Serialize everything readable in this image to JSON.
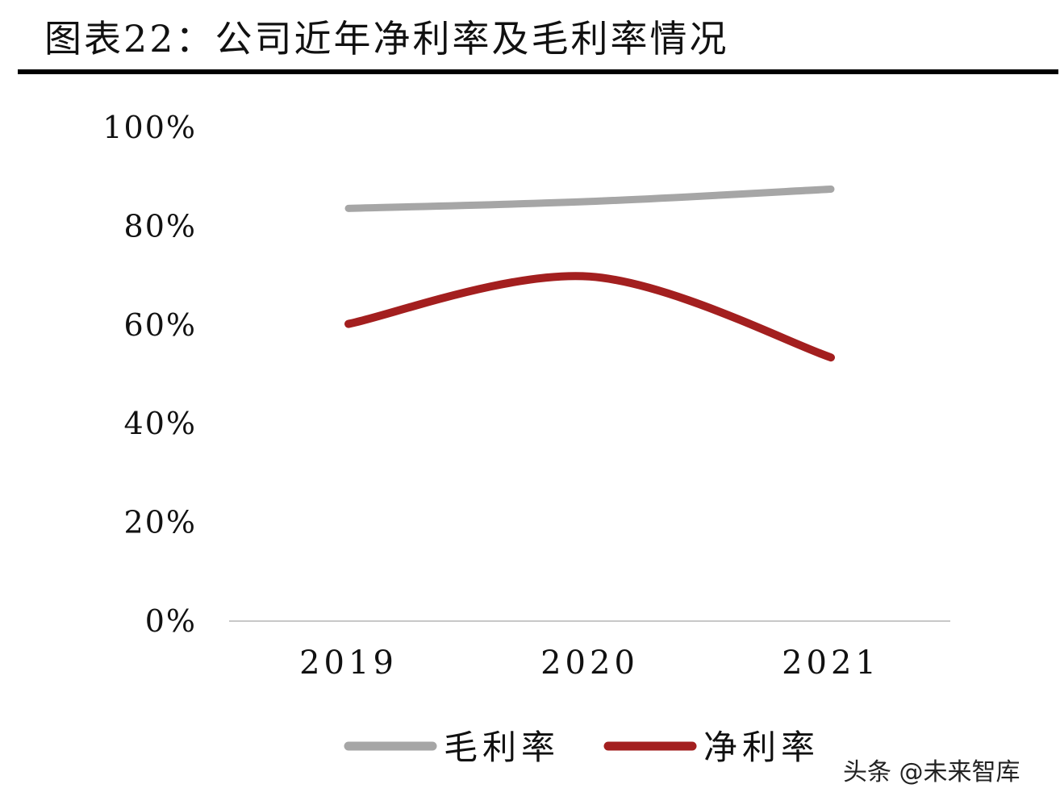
{
  "header": {
    "title": "图表22：公司近年净利率及毛利率情况"
  },
  "chart_data": {
    "type": "line",
    "title": "图表22：公司近年净利率及毛利率情况",
    "xlabel": "",
    "ylabel": "",
    "categories": [
      "2019",
      "2020",
      "2021"
    ],
    "y_ticks": [
      "0%",
      "20%",
      "40%",
      "60%",
      "80%",
      "100%"
    ],
    "ylim": [
      0,
      100
    ],
    "grid": false,
    "legend_position": "bottom",
    "series": [
      {
        "name": "毛利率",
        "values": [
          83.6,
          85.0,
          87.5
        ],
        "color": "#a6a6a6"
      },
      {
        "name": "净利率",
        "values": [
          60.2,
          69.8,
          53.4
        ],
        "color": "#a31f1f"
      }
    ]
  },
  "watermark": "头条 @未来智库"
}
